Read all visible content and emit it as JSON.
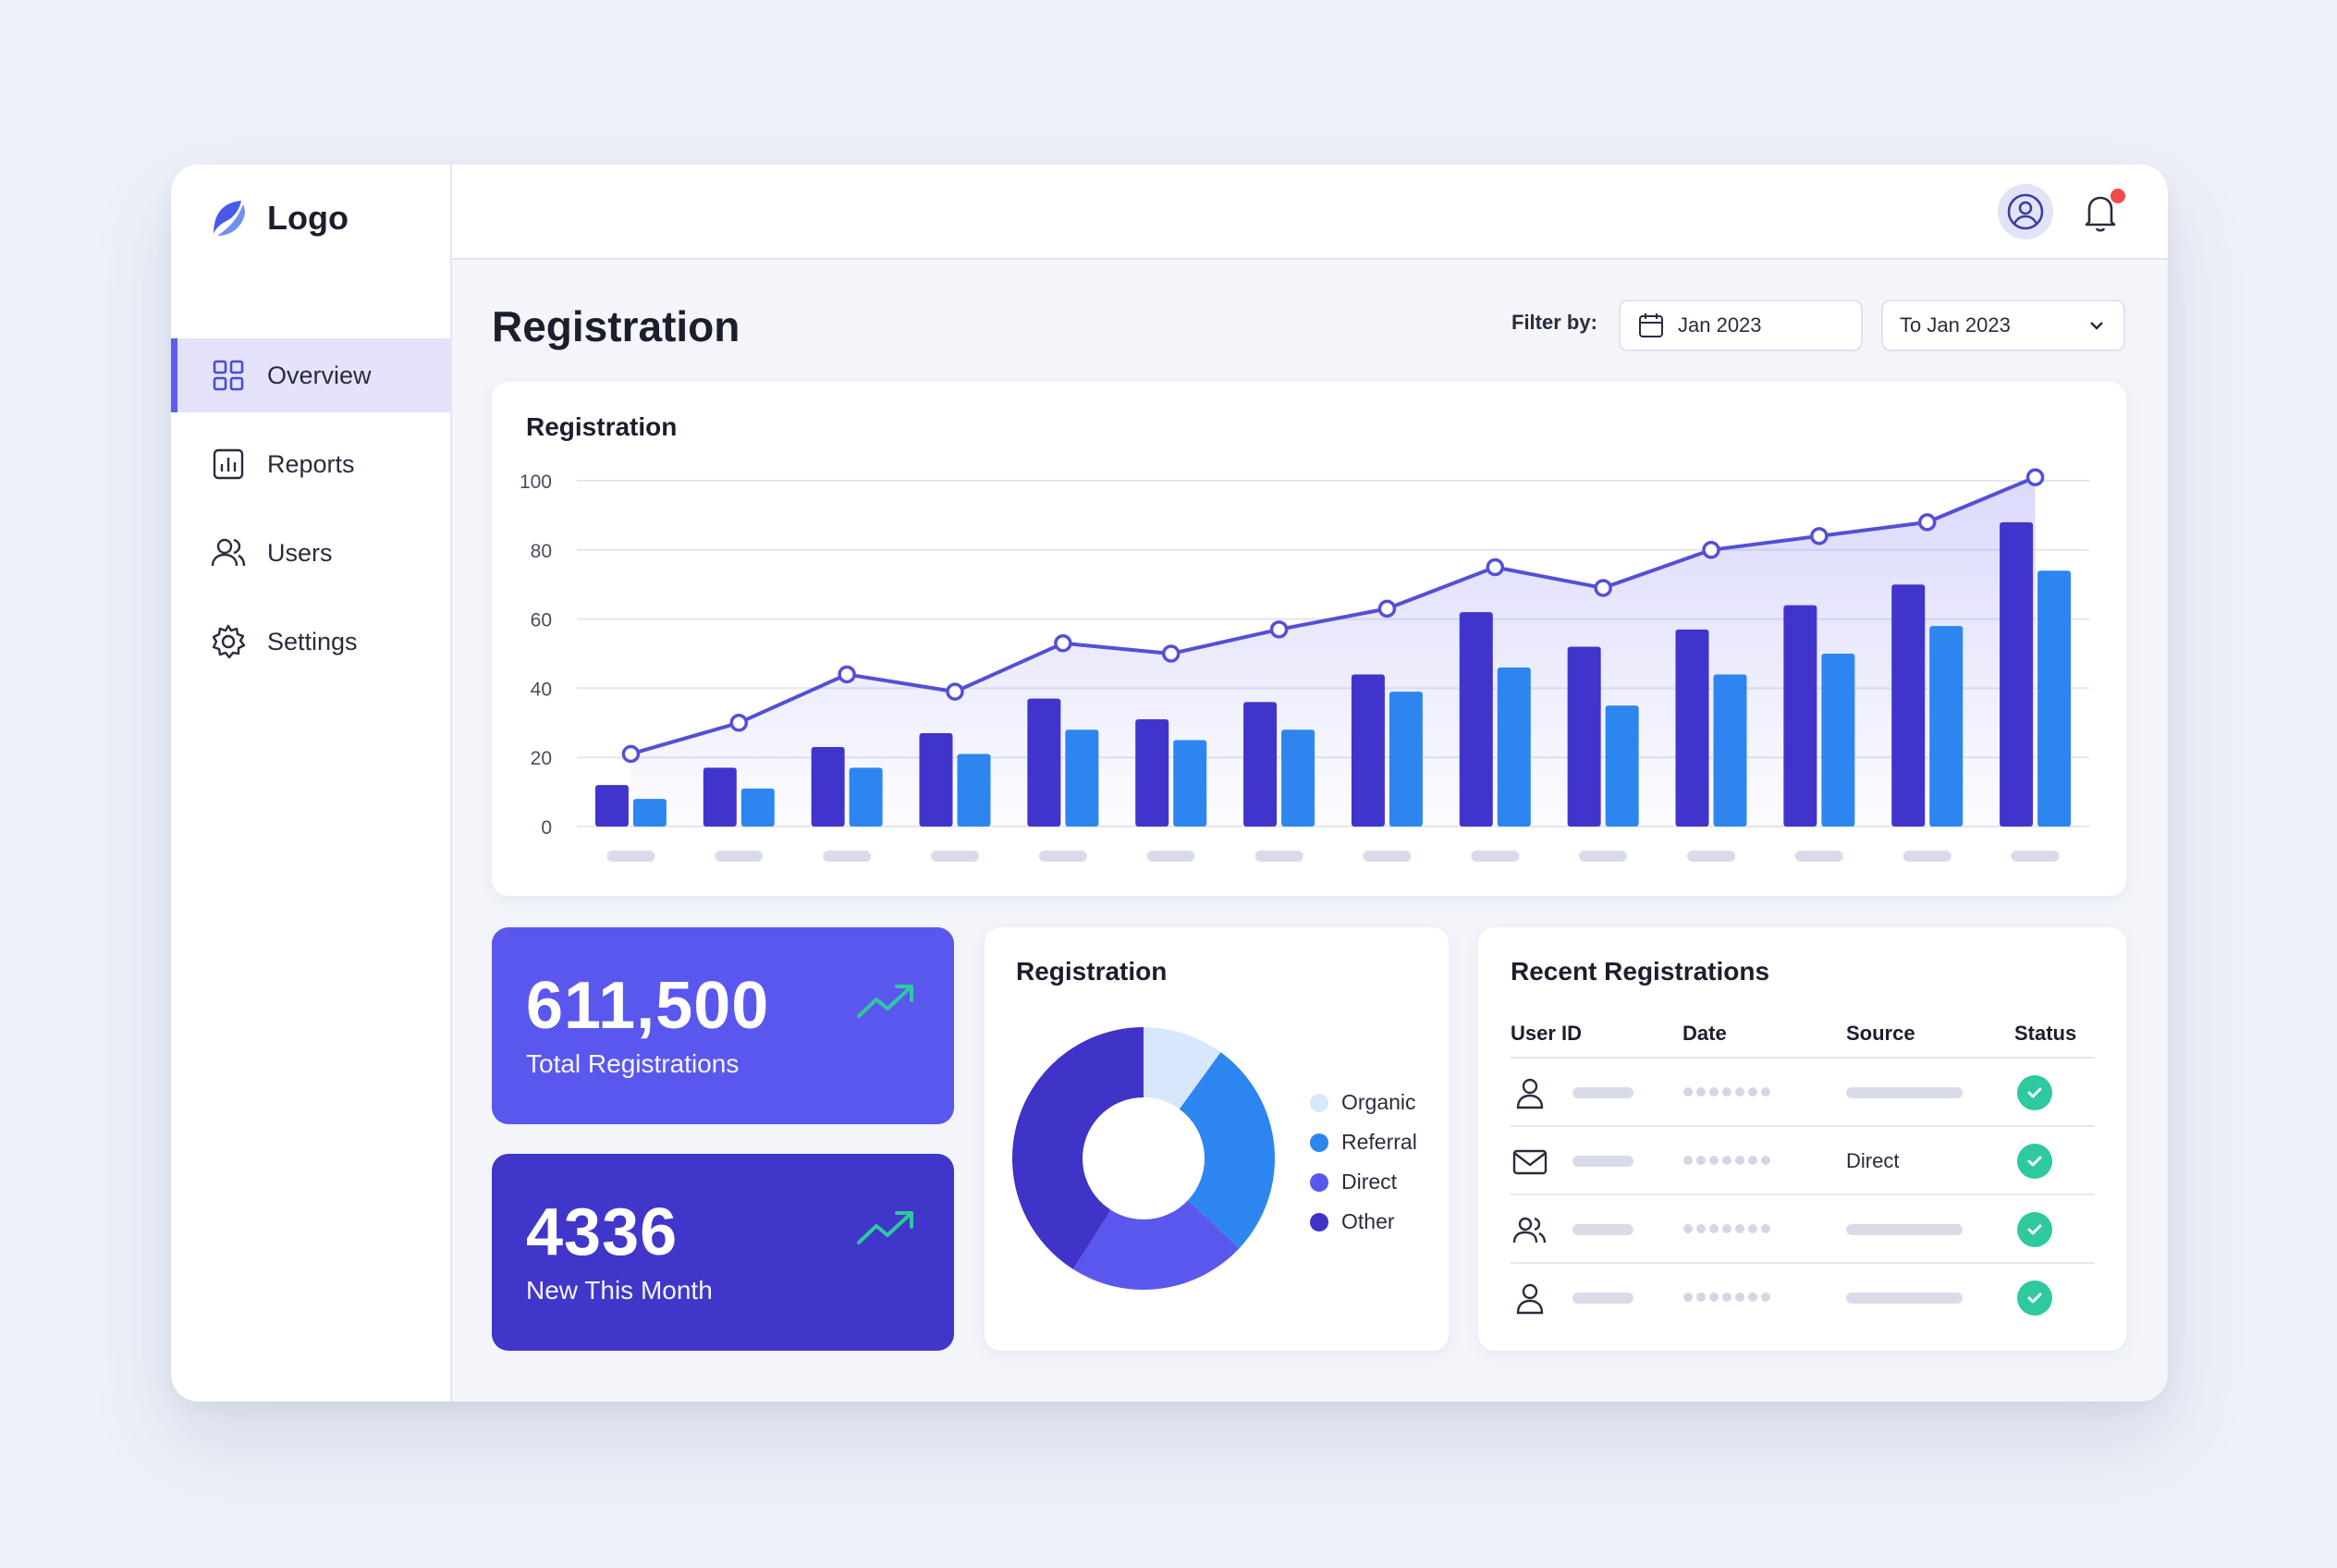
{
  "brand": {
    "name": "Logo"
  },
  "sidebar": {
    "items": [
      {
        "label": "Overview",
        "icon": "grid-icon",
        "active": true
      },
      {
        "label": "Reports",
        "icon": "bar-chart-icon",
        "active": false
      },
      {
        "label": "Users",
        "icon": "users-icon",
        "active": false
      },
      {
        "label": "Settings",
        "icon": "gear-icon",
        "active": false
      }
    ]
  },
  "header": {
    "has_notification": true
  },
  "page": {
    "title": "Registration"
  },
  "filter": {
    "label": "Filter by:",
    "from": "Jan 2023",
    "to": "To Jan 2023"
  },
  "main_chart": {
    "title": "Registration"
  },
  "chart_data": [
    {
      "type": "bar",
      "title": "Registration",
      "ylim": [
        0,
        100
      ],
      "yticks": [
        0,
        20,
        40,
        60,
        80,
        100
      ],
      "categories": [
        "",
        "",
        "",
        "",
        "",
        "",
        "",
        "",
        "",
        "",
        "",
        "",
        "",
        ""
      ],
      "series": [
        {
          "values": [
            12,
            17,
            23,
            27,
            37,
            31,
            36,
            44,
            62,
            52,
            57,
            64,
            70,
            88
          ],
          "color": "#4034cc"
        },
        {
          "values": [
            8,
            11,
            17,
            21,
            28,
            25,
            28,
            39,
            46,
            35,
            44,
            50,
            58,
            74
          ],
          "color": "#2d86f0"
        },
        {
          "type": "line",
          "values": [
            21,
            30,
            44,
            39,
            53,
            50,
            57,
            63,
            75,
            69,
            80,
            84,
            88,
            101
          ],
          "color": "#5350d6"
        }
      ],
      "grid": true
    },
    {
      "type": "pie",
      "title": "Registration",
      "donut": true,
      "categories": [
        "Organic",
        "Referral",
        "Direct",
        "Other"
      ],
      "values": [
        10,
        27,
        22,
        41
      ],
      "colors": [
        "#d7e8fd",
        "#2d86f0",
        "#5a57ef",
        "#3f33c8"
      ]
    }
  ],
  "stats": [
    {
      "value": "611,500",
      "label": "Total Registrations",
      "trend": "trend-up-icon",
      "accent": "#2ec99e"
    },
    {
      "value": "4336",
      "label": "New This Month",
      "trend": "trend-up-icon",
      "accent": "#2ec99e"
    }
  ],
  "pie_card": {
    "title": "Registration",
    "legend": [
      {
        "label": "Organic",
        "color": "#d7e8fd"
      },
      {
        "label": "Referral",
        "color": "#2d86f0"
      },
      {
        "label": "Direct",
        "color": "#5a57ef"
      },
      {
        "label": "Other",
        "color": "#3f33c8"
      }
    ]
  },
  "recent": {
    "title": "Recent Registrations",
    "columns": [
      "User ID",
      "Date",
      "Source",
      "Status"
    ],
    "rows": [
      {
        "icon": "user-icon",
        "source": "",
        "status": "check-icon"
      },
      {
        "icon": "mail-icon",
        "source": "Direct",
        "status": "check-icon"
      },
      {
        "icon": "users-icon",
        "source": "",
        "status": "check-icon"
      },
      {
        "icon": "user-icon",
        "source": "",
        "status": "check-icon"
      }
    ]
  }
}
